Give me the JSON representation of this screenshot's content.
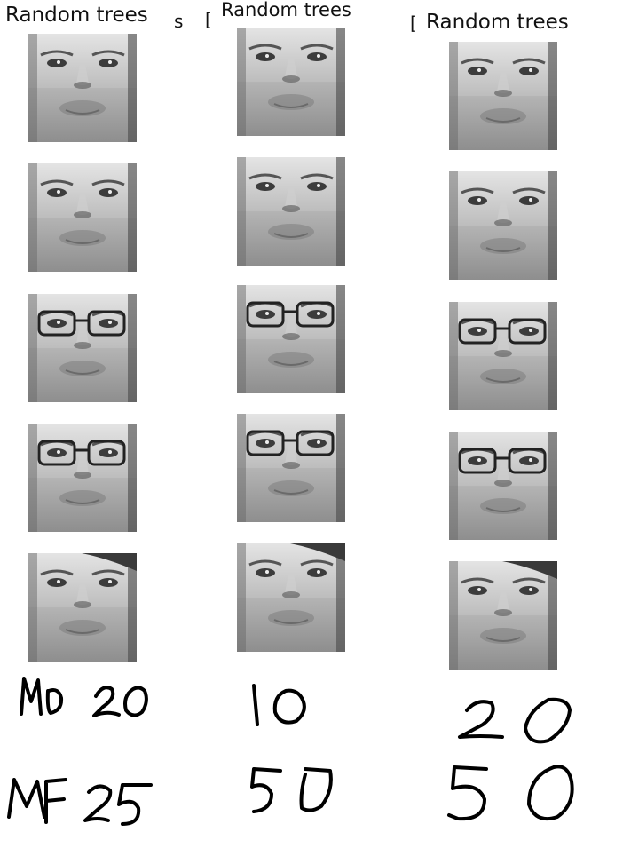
{
  "columns": [
    {
      "title": "Random trees",
      "fragment": "s",
      "mo": "20",
      "mf": "25"
    },
    {
      "title": "Random trees",
      "fragment": "[",
      "mo": "10",
      "mf": "50"
    },
    {
      "title": "Random trees",
      "fragment": "[",
      "mo": "20",
      "mf": "50"
    }
  ],
  "row_labels": {
    "mo": "MO",
    "mf": "MF"
  },
  "colors": {
    "face_light": "#d8d8d8",
    "face_mid": "#a8a8a8",
    "face_dark": "#3a3a3a",
    "ink": "#000000"
  }
}
